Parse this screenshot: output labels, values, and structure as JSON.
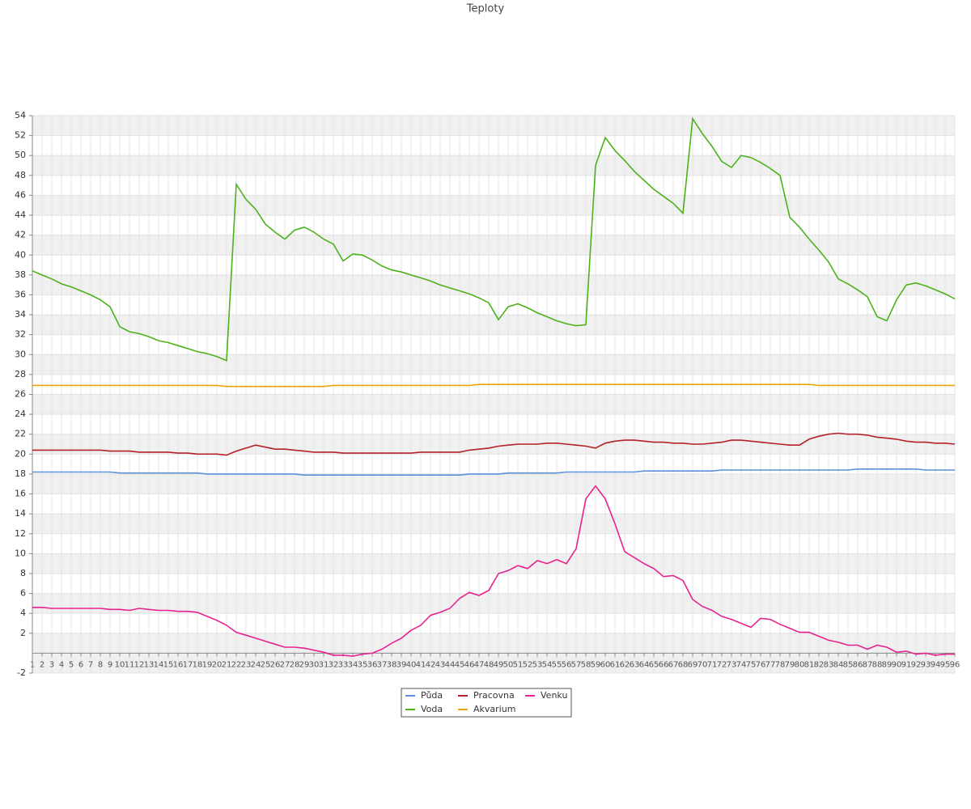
{
  "chart_data": {
    "type": "line",
    "title": "Teploty",
    "x": [
      1,
      2,
      3,
      4,
      5,
      6,
      7,
      8,
      9,
      10,
      11,
      12,
      13,
      14,
      15,
      16,
      17,
      18,
      19,
      20,
      21,
      22,
      23,
      24,
      25,
      26,
      27,
      28,
      29,
      30,
      31,
      32,
      33,
      34,
      35,
      36,
      37,
      38,
      39,
      40,
      41,
      42,
      43,
      44,
      45,
      46,
      47,
      48,
      49,
      50,
      51,
      52,
      53,
      54,
      55,
      56,
      57,
      58,
      59,
      60,
      61,
      62,
      63,
      64,
      65,
      66,
      67,
      68,
      69,
      70,
      71,
      72,
      73,
      74,
      75,
      76,
      77,
      78,
      79,
      80,
      81,
      82,
      83,
      84,
      85,
      86,
      87,
      88,
      89,
      90,
      91,
      92,
      93,
      94,
      95,
      96
    ],
    "xlim": [
      1,
      96
    ],
    "ylim": [
      -2,
      54
    ],
    "yticks": [
      -2,
      2,
      4,
      6,
      8,
      10,
      12,
      14,
      16,
      18,
      20,
      22,
      24,
      26,
      28,
      30,
      32,
      34,
      36,
      38,
      40,
      42,
      44,
      46,
      48,
      50,
      52,
      54
    ],
    "grid": true,
    "legend": "bottom",
    "series": [
      {
        "name": "Půda",
        "color": "#5b8fd6",
        "values": [
          18.2,
          18.2,
          18.2,
          18.2,
          18.2,
          18.2,
          18.2,
          18.2,
          18.2,
          18.1,
          18.1,
          18.1,
          18.1,
          18.1,
          18.1,
          18.1,
          18.1,
          18.1,
          18.0,
          18.0,
          18.0,
          18.0,
          18.0,
          18.0,
          18.0,
          18.0,
          18.0,
          18.0,
          17.9,
          17.9,
          17.9,
          17.9,
          17.9,
          17.9,
          17.9,
          17.9,
          17.9,
          17.9,
          17.9,
          17.9,
          17.9,
          17.9,
          17.9,
          17.9,
          17.9,
          18.0,
          18.0,
          18.0,
          18.0,
          18.1,
          18.1,
          18.1,
          18.1,
          18.1,
          18.1,
          18.2,
          18.2,
          18.2,
          18.2,
          18.2,
          18.2,
          18.2,
          18.2,
          18.3,
          18.3,
          18.3,
          18.3,
          18.3,
          18.3,
          18.3,
          18.3,
          18.4,
          18.4,
          18.4,
          18.4,
          18.4,
          18.4,
          18.4,
          18.4,
          18.4,
          18.4,
          18.4,
          18.4,
          18.4,
          18.4,
          18.5,
          18.5,
          18.5,
          18.5,
          18.5,
          18.5,
          18.5,
          18.4,
          18.4,
          18.4,
          18.4
        ]
      },
      {
        "name": "Voda",
        "color": "#4cb21a",
        "values": [
          38.4,
          38.0,
          37.6,
          37.1,
          36.8,
          36.4,
          36.0,
          35.5,
          34.8,
          32.8,
          32.3,
          32.1,
          31.8,
          31.4,
          31.2,
          30.9,
          30.6,
          30.3,
          30.1,
          29.8,
          29.4,
          47.1,
          45.6,
          44.6,
          43.1,
          42.3,
          41.6,
          42.5,
          42.8,
          42.3,
          41.6,
          41.1,
          39.4,
          40.1,
          40.0,
          39.5,
          38.9,
          38.5,
          38.3,
          38.0,
          37.7,
          37.4,
          37.0,
          36.7,
          36.4,
          36.1,
          35.7,
          35.2,
          33.5,
          34.8,
          35.1,
          34.7,
          34.2,
          33.8,
          33.4,
          33.1,
          32.9,
          33.0,
          49.0,
          51.8,
          50.5,
          49.5,
          48.4,
          47.5,
          46.6,
          45.9,
          45.2,
          44.2,
          53.7,
          52.2,
          50.9,
          49.4,
          48.8,
          50.0,
          49.8,
          49.3,
          48.7,
          48.0,
          43.8,
          42.8,
          41.6,
          40.5,
          39.3,
          37.6,
          37.1,
          36.5,
          35.8,
          33.8,
          33.4,
          35.5,
          37.0,
          37.2,
          36.9,
          36.5,
          36.1,
          35.6
        ]
      },
      {
        "name": "Pracovna",
        "color": "#b5202a",
        "values": [
          20.4,
          20.4,
          20.4,
          20.4,
          20.4,
          20.4,
          20.4,
          20.4,
          20.3,
          20.3,
          20.3,
          20.2,
          20.2,
          20.2,
          20.2,
          20.1,
          20.1,
          20.0,
          20.0,
          20.0,
          19.9,
          20.3,
          20.6,
          20.9,
          20.7,
          20.5,
          20.5,
          20.4,
          20.3,
          20.2,
          20.2,
          20.2,
          20.1,
          20.1,
          20.1,
          20.1,
          20.1,
          20.1,
          20.1,
          20.1,
          20.2,
          20.2,
          20.2,
          20.2,
          20.2,
          20.4,
          20.5,
          20.6,
          20.8,
          20.9,
          21.0,
          21.0,
          21.0,
          21.1,
          21.1,
          21.0,
          20.9,
          20.8,
          20.6,
          21.1,
          21.3,
          21.4,
          21.4,
          21.3,
          21.2,
          21.2,
          21.1,
          21.1,
          21.0,
          21.0,
          21.1,
          21.2,
          21.4,
          21.4,
          21.3,
          21.2,
          21.1,
          21.0,
          20.9,
          20.9,
          21.5,
          21.8,
          22.0,
          22.1,
          22.0,
          22.0,
          21.9,
          21.7,
          21.6,
          21.5,
          21.3,
          21.2,
          21.2,
          21.1,
          21.1,
          21.0
        ]
      },
      {
        "name": "Akvarium",
        "color": "#f0a30a",
        "values": [
          26.9,
          26.9,
          26.9,
          26.9,
          26.9,
          26.9,
          26.9,
          26.9,
          26.9,
          26.9,
          26.9,
          26.9,
          26.9,
          26.9,
          26.9,
          26.9,
          26.9,
          26.9,
          26.9,
          26.9,
          26.8,
          26.8,
          26.8,
          26.8,
          26.8,
          26.8,
          26.8,
          26.8,
          26.8,
          26.8,
          26.8,
          26.9,
          26.9,
          26.9,
          26.9,
          26.9,
          26.9,
          26.9,
          26.9,
          26.9,
          26.9,
          26.9,
          26.9,
          26.9,
          26.9,
          26.9,
          27.0,
          27.0,
          27.0,
          27.0,
          27.0,
          27.0,
          27.0,
          27.0,
          27.0,
          27.0,
          27.0,
          27.0,
          27.0,
          27.0,
          27.0,
          27.0,
          27.0,
          27.0,
          27.0,
          27.0,
          27.0,
          27.0,
          27.0,
          27.0,
          27.0,
          27.0,
          27.0,
          27.0,
          27.0,
          27.0,
          27.0,
          27.0,
          27.0,
          27.0,
          27.0,
          26.9,
          26.9,
          26.9,
          26.9,
          26.9,
          26.9,
          26.9,
          26.9,
          26.9,
          26.9,
          26.9,
          26.9,
          26.9,
          26.9,
          26.9
        ]
      },
      {
        "name": "Venku",
        "color": "#e8218f",
        "values": [
          4.6,
          4.6,
          4.5,
          4.5,
          4.5,
          4.5,
          4.5,
          4.5,
          4.4,
          4.4,
          4.3,
          4.5,
          4.4,
          4.3,
          4.3,
          4.2,
          4.2,
          4.1,
          3.7,
          3.3,
          2.8,
          2.1,
          1.8,
          1.5,
          1.2,
          0.9,
          0.6,
          0.6,
          0.5,
          0.3,
          0.1,
          -0.2,
          -0.2,
          -0.3,
          -0.1,
          0.0,
          0.4,
          1.0,
          1.5,
          2.3,
          2.8,
          3.8,
          4.1,
          4.5,
          5.5,
          6.1,
          5.8,
          6.3,
          8.0,
          8.3,
          8.8,
          8.5,
          9.3,
          9.0,
          9.4,
          9.0,
          10.5,
          15.5,
          16.8,
          15.5,
          13.0,
          10.2,
          9.6,
          9.0,
          8.5,
          7.7,
          7.8,
          7.3,
          5.4,
          4.7,
          4.3,
          3.7,
          3.4,
          3.0,
          2.6,
          3.5,
          3.4,
          2.9,
          2.5,
          2.1,
          2.1,
          1.7,
          1.3,
          1.1,
          0.8,
          0.8,
          0.4,
          0.8,
          0.6,
          0.1,
          0.2,
          -0.1,
          0.0,
          -0.2,
          -0.1,
          -0.1
        ]
      }
    ]
  }
}
